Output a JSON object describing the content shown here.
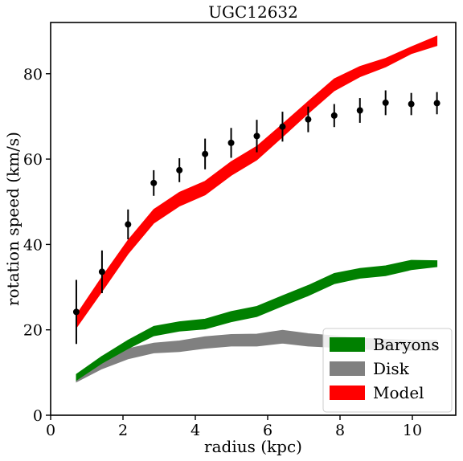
{
  "chart_data": {
    "type": "line",
    "title": "UGC12632",
    "xlabel": "radius (kpc)",
    "ylabel": "rotation speed (km/s)",
    "xlim": [
      0,
      11.2
    ],
    "ylim": [
      0,
      92
    ],
    "xticks": [
      0,
      2,
      4,
      6,
      8,
      10
    ],
    "yticks": [
      0,
      20,
      40,
      60,
      80
    ],
    "legend_position": "lower-right",
    "grid": false,
    "x": [
      0.71,
      1.42,
      2.14,
      2.85,
      3.56,
      4.27,
      4.99,
      5.7,
      6.41,
      7.12,
      7.84,
      8.55,
      9.26,
      9.97,
      10.68
    ],
    "observed": {
      "marker": "black circle with error bars",
      "y": [
        24.2,
        33.6,
        44.7,
        54.4,
        57.4,
        61.2,
        63.8,
        65.4,
        67.6,
        69.3,
        70.2,
        71.4,
        73.2,
        72.9,
        73.1
      ],
      "err": [
        7.5,
        5.0,
        3.5,
        3.0,
        2.8,
        3.6,
        3.5,
        3.8,
        3.5,
        3.0,
        2.7,
        2.9,
        2.9,
        2.6,
        2.6
      ]
    },
    "series": [
      {
        "name": "Disk",
        "color": "#808080",
        "lower": [
          7.8,
          10.9,
          13.2,
          14.6,
          14.9,
          15.7,
          16.2,
          16.2,
          16.9,
          16.2,
          15.9,
          15.5,
          15.3,
          15.2,
          15.2
        ],
        "upper": [
          9.2,
          12.8,
          15.6,
          16.9,
          17.4,
          18.4,
          18.9,
          19.0,
          19.9,
          19.1,
          18.6,
          18.0,
          17.8,
          17.6,
          17.6
        ]
      },
      {
        "name": "Baryons",
        "color": "#008000",
        "lower": [
          8.2,
          12.2,
          15.6,
          18.6,
          19.7,
          20.2,
          21.9,
          23.1,
          25.6,
          28.0,
          30.8,
          32.1,
          32.7,
          34.1,
          34.8
        ],
        "upper": [
          9.6,
          13.8,
          17.6,
          20.8,
          21.9,
          22.5,
          24.3,
          25.5,
          28.0,
          30.4,
          33.2,
          34.4,
          35.0,
          36.3,
          36.2
        ]
      },
      {
        "name": "Model",
        "color": "#ff0000",
        "lower": [
          20.5,
          29.0,
          37.8,
          45.0,
          49.0,
          51.6,
          56.2,
          59.8,
          65.2,
          70.7,
          76.0,
          79.3,
          81.6,
          84.7,
          86.6
        ],
        "upper": [
          23.5,
          32.4,
          41.0,
          48.2,
          52.2,
          54.8,
          59.4,
          63.0,
          68.2,
          73.5,
          78.8,
          81.7,
          83.6,
          86.3,
          88.8
        ]
      }
    ],
    "legend": [
      "Baryons",
      "Disk",
      "Model"
    ]
  }
}
